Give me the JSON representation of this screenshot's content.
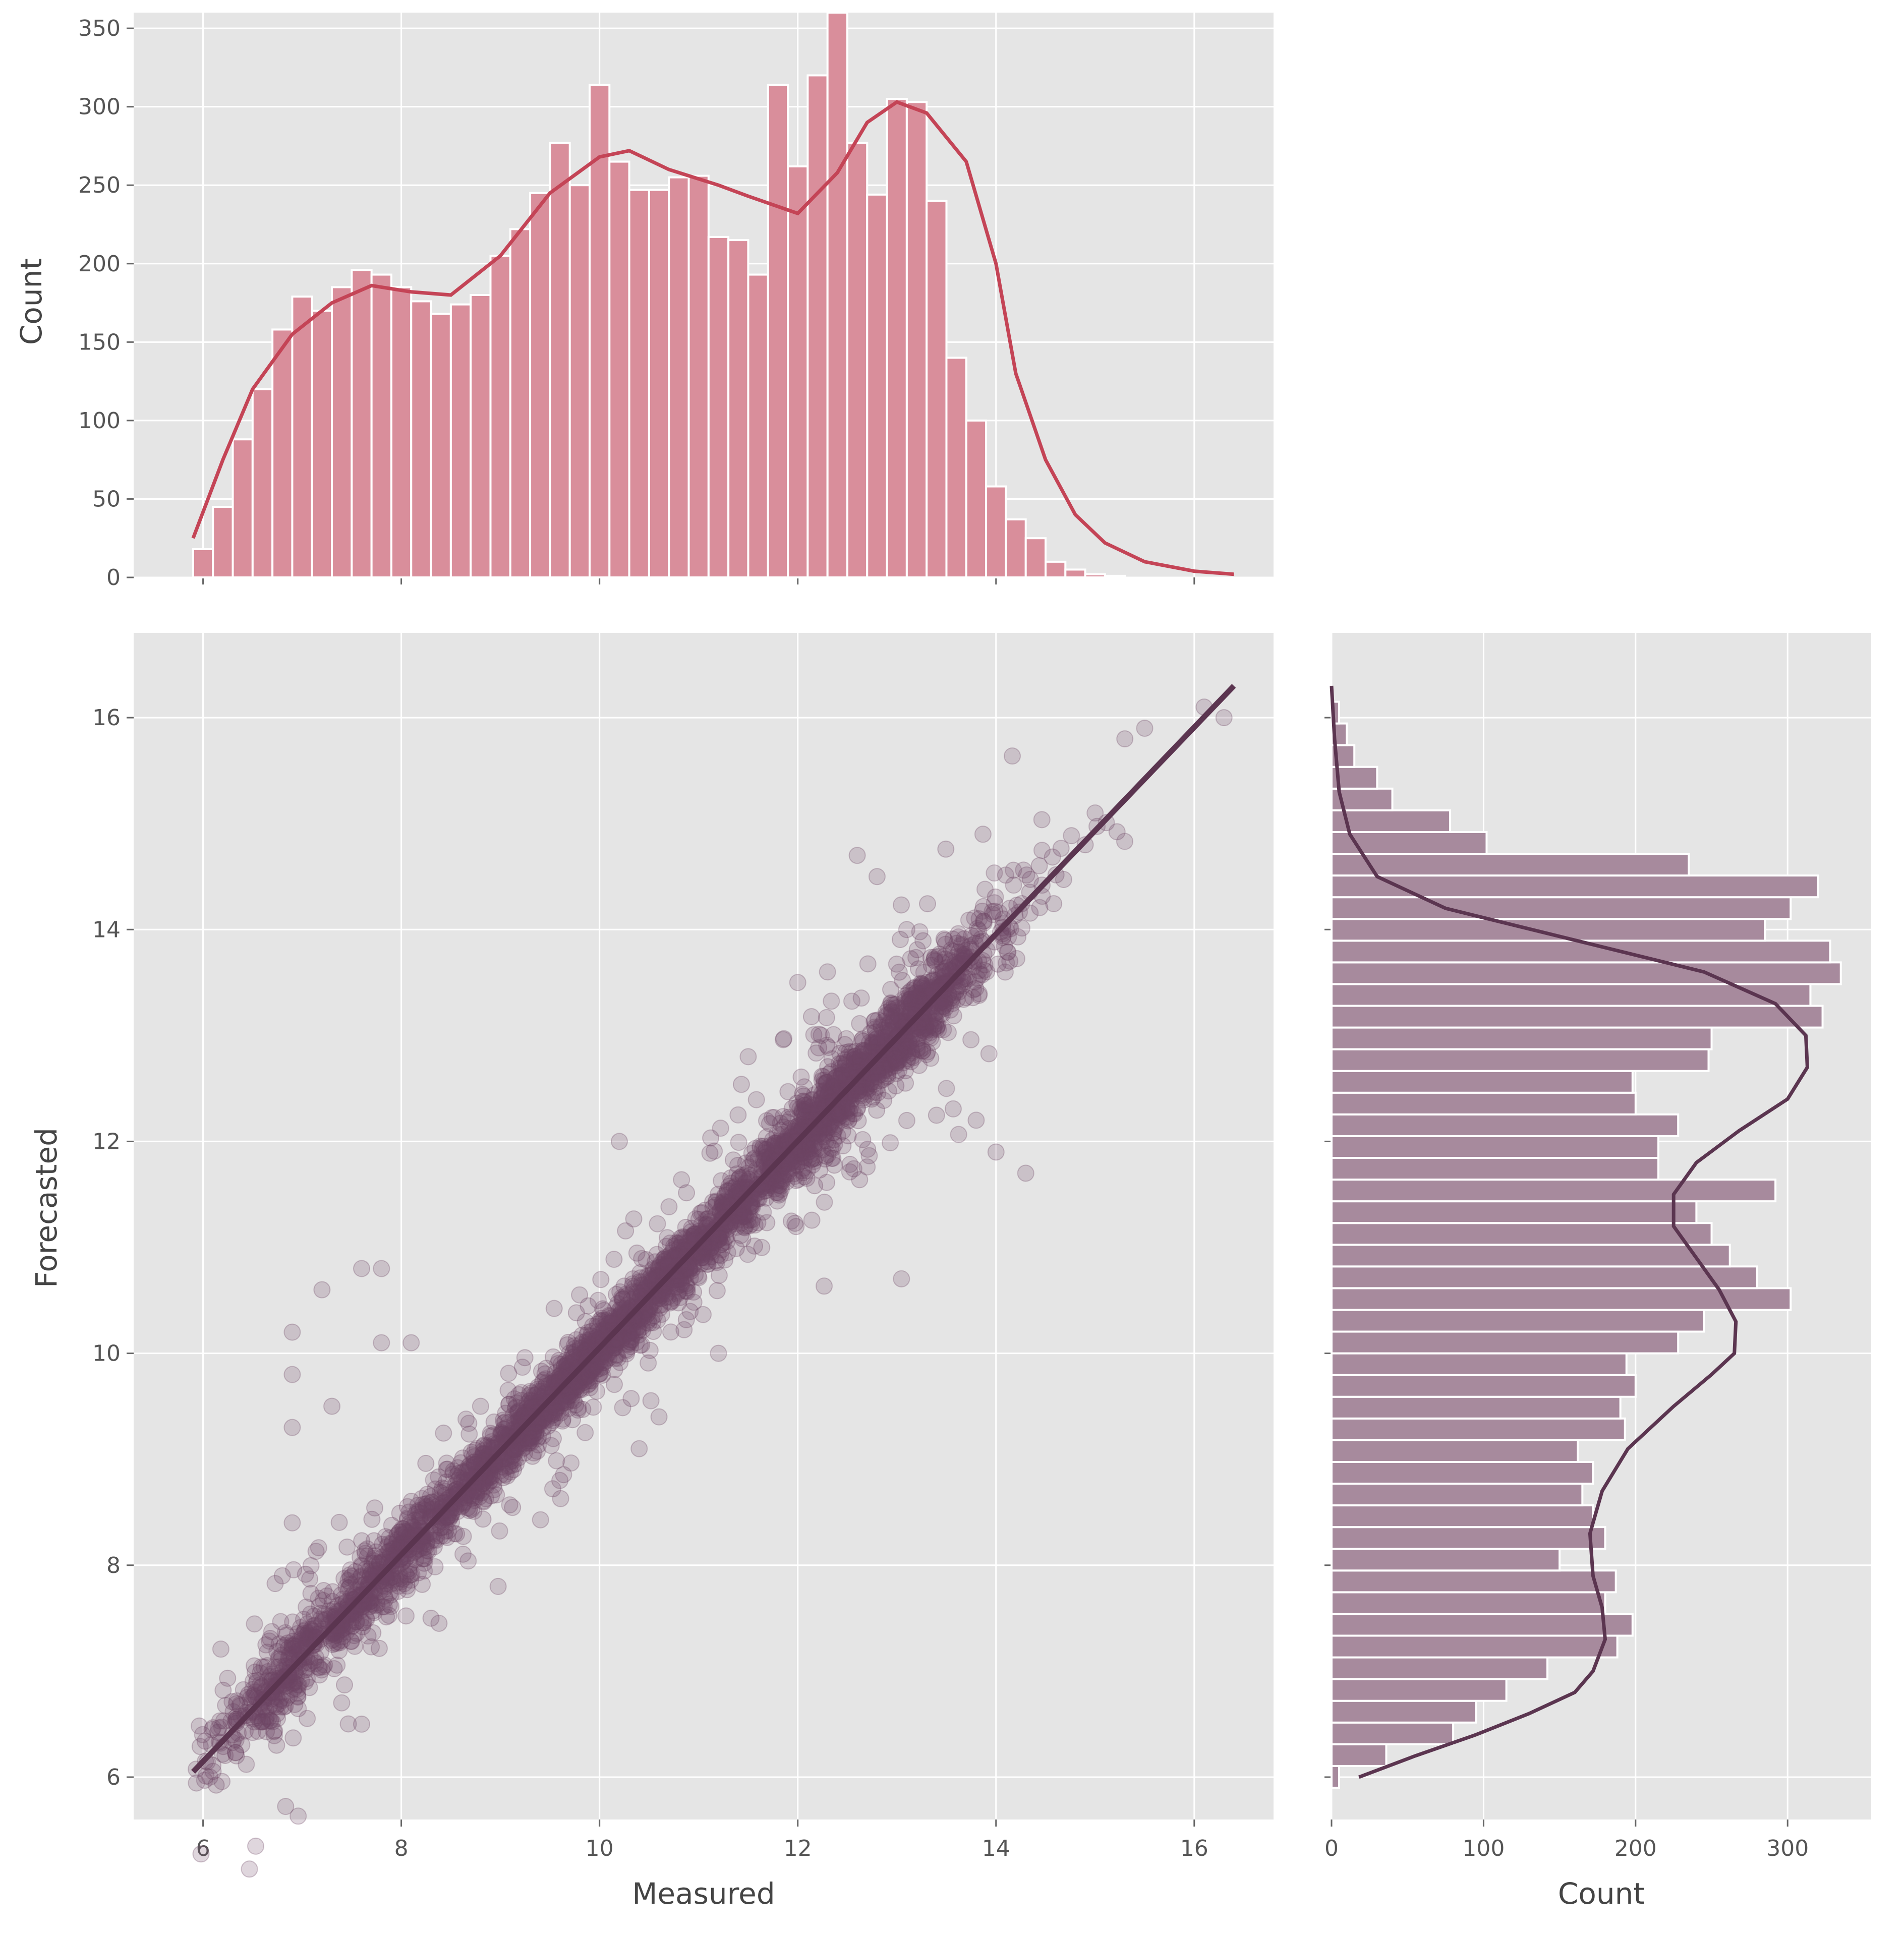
{
  "colors": {
    "panel_bg": "#e5e5e5",
    "grid": "#ffffff",
    "top_hist": "#d98e9b",
    "top_hist_edge": "#ffffff",
    "top_kde": "#c44456",
    "scatter": "#6e4463",
    "right_hist": "#a78a9d",
    "right_kde": "#5b3550",
    "fit_line": "#5b3550"
  },
  "chart_data": [
    {
      "id": "top-marginal",
      "type": "bar",
      "orientation": "vertical",
      "xlabel": "",
      "ylabel": "Count",
      "xlim": [
        5.3,
        16.8
      ],
      "ylim": [
        0,
        360
      ],
      "yticks": [
        0,
        50,
        100,
        150,
        200,
        250,
        300,
        350
      ],
      "bin_start": 5.9,
      "bin_width": 0.2,
      "values": [
        18,
        45,
        88,
        120,
        158,
        179,
        170,
        185,
        196,
        193,
        185,
        176,
        168,
        174,
        180,
        205,
        222,
        245,
        277,
        250,
        314,
        265,
        247,
        247,
        255,
        256,
        217,
        215,
        193,
        314,
        262,
        320,
        360,
        277,
        244,
        305,
        303,
        240,
        140,
        100,
        58,
        37,
        25,
        10,
        5,
        2,
        1,
        0,
        0,
        0,
        0,
        0,
        0
      ],
      "kde": [
        [
          5.9,
          25
        ],
        [
          6.2,
          75
        ],
        [
          6.5,
          120
        ],
        [
          6.9,
          155
        ],
        [
          7.3,
          175
        ],
        [
          7.7,
          186
        ],
        [
          8.1,
          182
        ],
        [
          8.5,
          180
        ],
        [
          9.0,
          205
        ],
        [
          9.5,
          245
        ],
        [
          10.0,
          268
        ],
        [
          10.3,
          272
        ],
        [
          10.7,
          260
        ],
        [
          11.2,
          250
        ],
        [
          11.5,
          243
        ],
        [
          12.0,
          232
        ],
        [
          12.4,
          258
        ],
        [
          12.7,
          290
        ],
        [
          13.0,
          303
        ],
        [
          13.3,
          296
        ],
        [
          13.7,
          265
        ],
        [
          14.0,
          200
        ],
        [
          14.2,
          130
        ],
        [
          14.5,
          75
        ],
        [
          14.8,
          40
        ],
        [
          15.1,
          22
        ],
        [
          15.5,
          10
        ],
        [
          16.0,
          4
        ],
        [
          16.4,
          2
        ]
      ]
    },
    {
      "id": "joint-scatter",
      "type": "scatter",
      "xlabel": "Measured",
      "ylabel": "Forecasted",
      "xlim": [
        5.3,
        16.8
      ],
      "ylim": [
        5.6,
        16.8
      ],
      "xticks": [
        6,
        8,
        10,
        12,
        14,
        16
      ],
      "yticks": [
        6,
        8,
        10,
        12,
        14,
        16
      ],
      "fit_line": [
        [
          5.9,
          6.05
        ],
        [
          16.4,
          16.3
        ]
      ],
      "outliers": [
        [
          6.9,
          10.2
        ],
        [
          6.9,
          9.8
        ],
        [
          7.2,
          10.6
        ],
        [
          7.6,
          10.8
        ],
        [
          7.8,
          10.8
        ],
        [
          8.1,
          10.1
        ],
        [
          7.8,
          10.1
        ],
        [
          6.9,
          9.3
        ],
        [
          7.3,
          9.5
        ],
        [
          6.9,
          8.4
        ],
        [
          6.8,
          7.9
        ],
        [
          7.6,
          6.5
        ],
        [
          8.3,
          7.5
        ],
        [
          8.9,
          8.8
        ],
        [
          10.2,
          12.0
        ],
        [
          11.5,
          12.8
        ],
        [
          12.0,
          13.5
        ],
        [
          12.3,
          13.6
        ],
        [
          12.6,
          14.7
        ],
        [
          12.8,
          14.5
        ],
        [
          13.1,
          14.0
        ],
        [
          14.3,
          11.7
        ],
        [
          14.0,
          11.9
        ],
        [
          13.5,
          12.5
        ],
        [
          13.8,
          12.2
        ],
        [
          11.2,
          10.0
        ],
        [
          10.6,
          9.4
        ],
        [
          10.4,
          9.1
        ],
        [
          9.6,
          8.8
        ],
        [
          8.8,
          9.5
        ],
        [
          15.3,
          15.8
        ],
        [
          15.5,
          15.9
        ],
        [
          16.1,
          16.1
        ],
        [
          16.3,
          16.0
        ],
        [
          14.9,
          14.8
        ],
        [
          15.0,
          15.1
        ]
      ]
    },
    {
      "id": "right-marginal",
      "type": "bar",
      "orientation": "horizontal",
      "xlabel": "Count",
      "ylabel": "",
      "xlim": [
        0,
        355
      ],
      "ylim": [
        5.6,
        16.8
      ],
      "xticks": [
        0,
        100,
        200,
        300
      ],
      "bin_start": 5.9,
      "bin_width": 0.205,
      "values": [
        5,
        36,
        80,
        95,
        115,
        142,
        188,
        198,
        180,
        187,
        150,
        180,
        172,
        165,
        172,
        162,
        193,
        190,
        200,
        194,
        228,
        245,
        302,
        280,
        262,
        250,
        240,
        292,
        215,
        215,
        228,
        200,
        198,
        248,
        250,
        323,
        315,
        335,
        328,
        285,
        302,
        320,
        235,
        102,
        78,
        40,
        30,
        15,
        10,
        5
      ],
      "kde": [
        [
          6.0,
          18
        ],
        [
          6.2,
          55
        ],
        [
          6.4,
          95
        ],
        [
          6.6,
          130
        ],
        [
          6.8,
          160
        ],
        [
          7.0,
          172
        ],
        [
          7.3,
          180
        ],
        [
          7.6,
          178
        ],
        [
          7.9,
          172
        ],
        [
          8.3,
          170
        ],
        [
          8.7,
          178
        ],
        [
          9.1,
          195
        ],
        [
          9.5,
          225
        ],
        [
          9.8,
          250
        ],
        [
          10.0,
          265
        ],
        [
          10.3,
          266
        ],
        [
          10.6,
          255
        ],
        [
          10.9,
          240
        ],
        [
          11.2,
          225
        ],
        [
          11.5,
          225
        ],
        [
          11.8,
          240
        ],
        [
          12.1,
          268
        ],
        [
          12.4,
          300
        ],
        [
          12.7,
          313
        ],
        [
          13.0,
          312
        ],
        [
          13.3,
          292
        ],
        [
          13.6,
          245
        ],
        [
          13.9,
          160
        ],
        [
          14.2,
          75
        ],
        [
          14.5,
          30
        ],
        [
          14.9,
          12
        ],
        [
          15.3,
          5
        ],
        [
          15.8,
          2
        ],
        [
          16.3,
          0
        ]
      ]
    }
  ]
}
